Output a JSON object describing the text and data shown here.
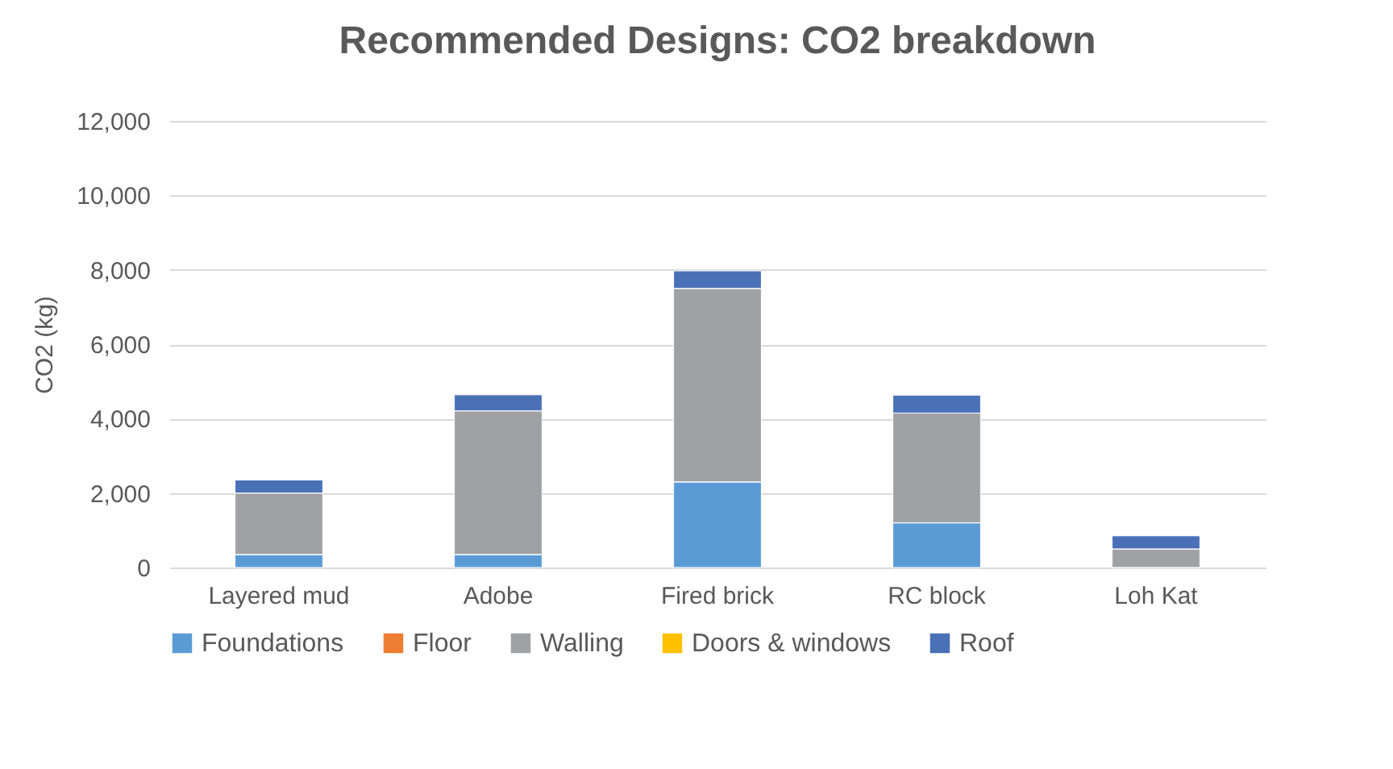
{
  "chart_data": {
    "type": "bar",
    "title": "Recommended Designs: CO2 breakdown",
    "ylabel": "CO2 (kg)",
    "categories": [
      "Layered mud",
      "Adobe",
      "Fired brick",
      "RC block",
      "Loh Kat"
    ],
    "series": [
      {
        "name": "Foundations",
        "color": "#5b9bd5",
        "values": [
          350,
          350,
          2300,
          1200,
          0
        ]
      },
      {
        "name": "Floor",
        "color": "#ed7d31",
        "values": [
          0,
          0,
          0,
          0,
          0
        ]
      },
      {
        "name": "Walling",
        "color": "#a0a1a5",
        "values": [
          1650,
          3860,
          5200,
          2950,
          500
        ]
      },
      {
        "name": "Doors & windows",
        "color": "#ffc000",
        "values": [
          0,
          0,
          0,
          0,
          0
        ]
      },
      {
        "name": "Roof",
        "color": "#4a71b8",
        "values": [
          350,
          430,
          470,
          480,
          350
        ]
      }
    ],
    "stacked": true,
    "ylim": [
      0,
      12000
    ],
    "yticks": [
      0,
      {
        "value": 2000,
        "label": "2,000"
      },
      {
        "value": 4000,
        "label": "4,000"
      },
      {
        "value": 6000,
        "label": "6,000"
      },
      {
        "value": 8000,
        "label": "8,000"
      },
      {
        "value": 10000,
        "label": "10,000"
      },
      {
        "value": 12000,
        "label": "12,000"
      }
    ],
    "grid": "y",
    "legend": "bottom"
  }
}
